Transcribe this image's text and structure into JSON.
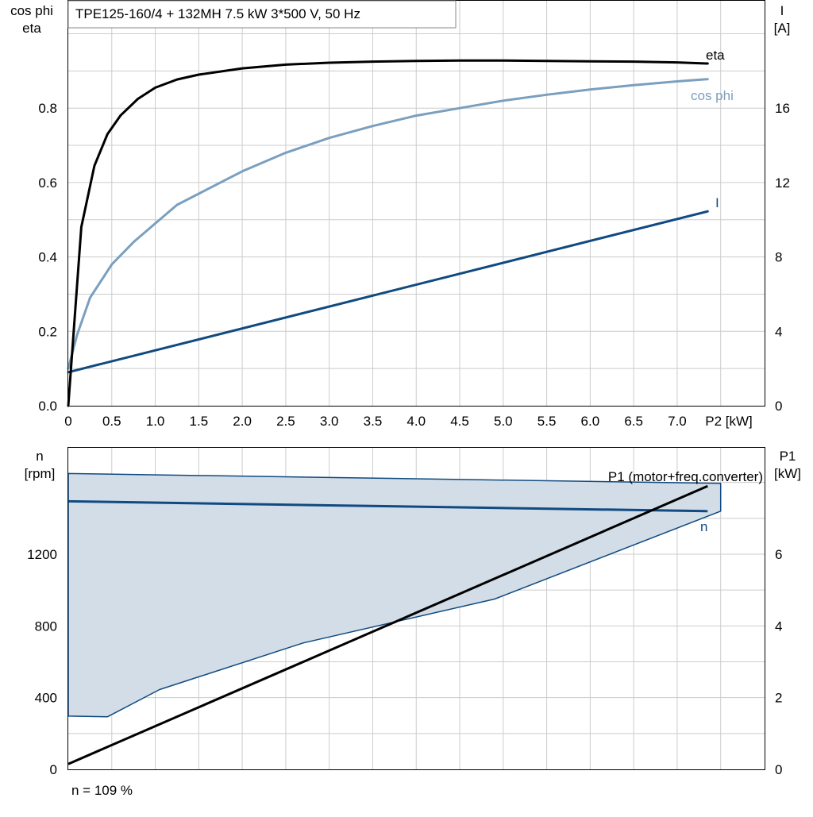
{
  "title": "TPE125-160/4 + 132MH   7.5 kW   3*500 V, 50 Hz",
  "footnote": "n = 109 %",
  "colors": {
    "eta": "#000000",
    "cos_phi": "#7a9fbf",
    "current": "#104a80",
    "speed": "#104a80",
    "p1": "#000000",
    "area_fill": "#d2dde8",
    "area_edge": "#104a80",
    "grid": "#cccccc"
  },
  "chart_data": [
    {
      "type": "line",
      "x_axis": {
        "label": "P2 [kW]",
        "range": [
          0,
          8
        ],
        "ticks": [
          "0",
          "0.5",
          "1.0",
          "1.5",
          "2.0",
          "2.5",
          "3.0",
          "3.5",
          "4.0",
          "4.5",
          "5.0",
          "5.5",
          "6.0",
          "6.5",
          "7.0"
        ]
      },
      "y_left": {
        "label": [
          "cos phi",
          "eta"
        ],
        "range": [
          0,
          1.0
        ],
        "ticks": [
          "0.0",
          "0.2",
          "0.4",
          "0.6",
          "0.8"
        ]
      },
      "y_right": {
        "label": [
          "I",
          "[A]"
        ],
        "range": [
          0,
          20
        ],
        "ticks": [
          "0",
          "4",
          "8",
          "12",
          "16"
        ]
      },
      "grid": true,
      "series": [
        {
          "name": "eta",
          "axis": "left",
          "x": [
            0.0,
            0.15,
            0.3,
            0.45,
            0.6,
            0.8,
            1.0,
            1.25,
            1.5,
            2.0,
            2.5,
            3.0,
            3.5,
            4.0,
            4.5,
            5.0,
            5.5,
            6.0,
            6.5,
            7.0,
            7.35
          ],
          "y": [
            0.0,
            0.48,
            0.645,
            0.73,
            0.78,
            0.825,
            0.855,
            0.877,
            0.89,
            0.907,
            0.917,
            0.922,
            0.925,
            0.927,
            0.928,
            0.928,
            0.927,
            0.926,
            0.925,
            0.923,
            0.92
          ]
        },
        {
          "name": "cos phi",
          "axis": "left",
          "x": [
            0.0,
            0.1,
            0.25,
            0.5,
            0.75,
            1.0,
            1.25,
            1.5,
            2.0,
            2.5,
            3.0,
            3.5,
            4.0,
            4.5,
            5.0,
            5.5,
            6.0,
            6.5,
            7.0,
            7.35
          ],
          "y": [
            0.1,
            0.19,
            0.29,
            0.38,
            0.44,
            0.49,
            0.54,
            0.57,
            0.63,
            0.68,
            0.72,
            0.752,
            0.78,
            0.8,
            0.82,
            0.836,
            0.85,
            0.862,
            0.872,
            0.878
          ]
        },
        {
          "name": "I",
          "axis": "right",
          "x": [
            0.0,
            7.35
          ],
          "y": [
            1.8,
            10.45
          ]
        }
      ]
    },
    {
      "type": "area",
      "x_axis": {
        "label": "P2 [kW]",
        "range": [
          0,
          8
        ]
      },
      "y_left": {
        "label": [
          "n",
          "[rpm]"
        ],
        "range": [
          0,
          1800
        ],
        "ticks": [
          "0",
          "400",
          "800",
          "1200"
        ]
      },
      "y_right": {
        "label": [
          "P1",
          "[kW]"
        ],
        "range": [
          0,
          9
        ],
        "ticks": [
          "0",
          "2",
          "4",
          "6"
        ]
      },
      "grid": true,
      "operating_area": {
        "upper": {
          "x": [
            0.0,
            7.5
          ],
          "y": [
            1650,
            1595
          ]
        },
        "right_edge": {
          "x": [
            7.5,
            7.5
          ],
          "y": [
            1595,
            1440
          ]
        },
        "lower": {
          "x": [
            7.5,
            4.9,
            2.7,
            1.05,
            0.45,
            0.0
          ],
          "y": [
            1440,
            950,
            705,
            445,
            293,
            297
          ]
        }
      },
      "series": [
        {
          "name": "n",
          "axis": "left",
          "x": [
            0.0,
            7.35
          ],
          "y": [
            1495,
            1440
          ]
        },
        {
          "name": "P1 (motor+freq.converter)",
          "axis": "right",
          "x": [
            0.0,
            7.35
          ],
          "y": [
            0.15,
            7.9
          ]
        }
      ]
    }
  ]
}
